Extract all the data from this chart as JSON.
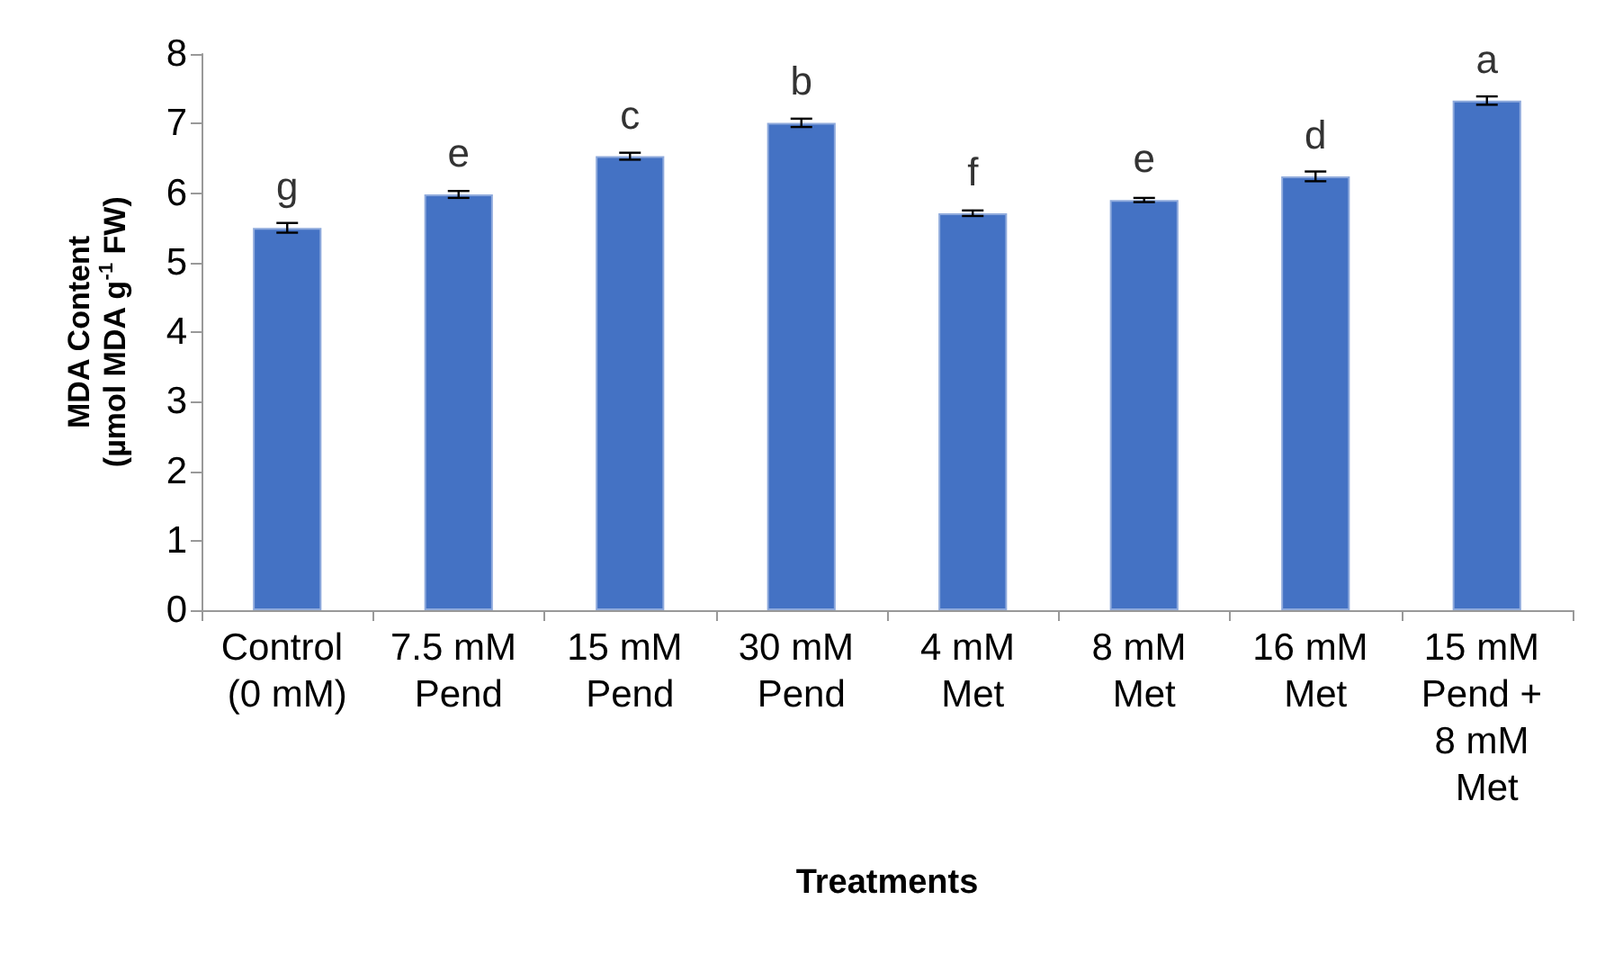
{
  "chart_data": {
    "type": "bar",
    "xlabel": "Treatments",
    "ylabel": "MDA Content\n(µmol MDA g$^{-1}$ FW)",
    "categories": [
      "Control (0 mM)",
      "7.5 mM Pend",
      "15 mM Pend",
      "30 mM Pend",
      "4 mM Met",
      "8 mM Met",
      "16 mM Met",
      "15 mM Pend + 8 mM Met"
    ],
    "values": [
      5.5,
      5.98,
      6.53,
      7.01,
      5.71,
      5.9,
      6.24,
      7.33
    ],
    "errors": [
      0.07,
      0.05,
      0.05,
      0.06,
      0.04,
      0.03,
      0.07,
      0.06
    ],
    "color": "#4472c4",
    "ylim": [
      0,
      8
    ],
    "yticks": [
      0,
      1,
      2,
      3,
      4,
      5,
      6,
      7,
      8
    ],
    "grid": false,
    "annotations": [
      {
        "text": "g",
        "x": "Control (0 mM)",
        "y": 5.5
      },
      {
        "text": "e",
        "x": "7.5 mM Pend",
        "y": 5.98
      },
      {
        "text": "c",
        "x": "15 mM Pend",
        "y": 6.53
      },
      {
        "text": "b",
        "x": "30 mM Pend",
        "y": 7.01
      },
      {
        "text": "f",
        "x": "4 mM Met",
        "y": 5.71
      },
      {
        "text": "e",
        "x": "8 mM Met",
        "y": 5.9
      },
      {
        "text": "d",
        "x": "16 mM Met",
        "y": 6.24
      },
      {
        "text": "a",
        "x": "15 mM Pend + 8 mM Met",
        "y": 7.33
      }
    ]
  }
}
